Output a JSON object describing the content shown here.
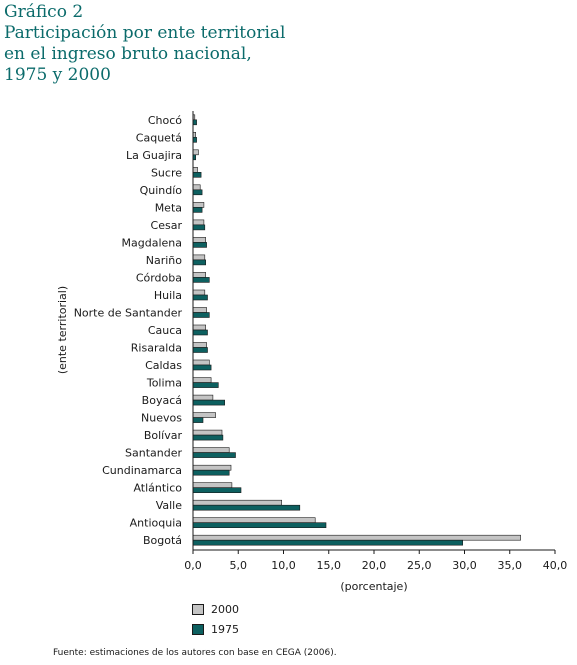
{
  "header": {
    "title_line1": "Gráfico 2",
    "title_line2": "Participación por ente territorial",
    "title_line3": "en el ingreso bruto nacional,",
    "title_line4": "1975 y 2000"
  },
  "colors": {
    "s2000": "#c4c4c4",
    "s1975": "#0d6060",
    "title": "#0b6b6b",
    "outline": "#1a1a1a"
  },
  "source": "Fuente: estimaciones de los autores con base en CEGA (2006).",
  "chart_data": {
    "type": "bar",
    "orientation": "horizontal",
    "title": "",
    "xlabel": "(porcentaje)",
    "ylabel": "(ente territorial)",
    "xlim": [
      0,
      40
    ],
    "xticks": [
      "0,0",
      "5,0",
      "10,0",
      "15,0",
      "20,0",
      "25,0",
      "30,0",
      "35,0",
      "40,0"
    ],
    "categories": [
      "Chocó",
      "Caquetá",
      "La Guajira",
      "Sucre",
      "Quindío",
      "Meta",
      "Cesar",
      "Magdalena",
      "Nariño",
      "Córdoba",
      "Huila",
      "Norte de Santander",
      "Cauca",
      "Risaralda",
      "Caldas",
      "Tolima",
      "Boyacá",
      "Nuevos",
      "Bolívar",
      "Santander",
      "Cundinamarca",
      "Atlántico",
      "Valle",
      "Antioquia",
      "Bogotá"
    ],
    "series": [
      {
        "name": "2000",
        "values": [
          0.2,
          0.3,
          0.6,
          0.5,
          0.8,
          1.2,
          1.2,
          1.4,
          1.3,
          1.4,
          1.3,
          1.5,
          1.4,
          1.5,
          1.8,
          2.0,
          2.2,
          2.5,
          3.2,
          4.0,
          4.2,
          4.3,
          9.8,
          13.5,
          36.2
        ]
      },
      {
        "name": "1975",
        "values": [
          0.4,
          0.4,
          0.3,
          0.9,
          1.0,
          1.0,
          1.3,
          1.5,
          1.4,
          1.8,
          1.6,
          1.8,
          1.6,
          1.6,
          2.0,
          2.8,
          3.5,
          1.1,
          3.3,
          4.7,
          4.0,
          5.3,
          11.8,
          14.7,
          29.8
        ]
      }
    ],
    "legend_position": "bottom-left",
    "grid": false
  }
}
